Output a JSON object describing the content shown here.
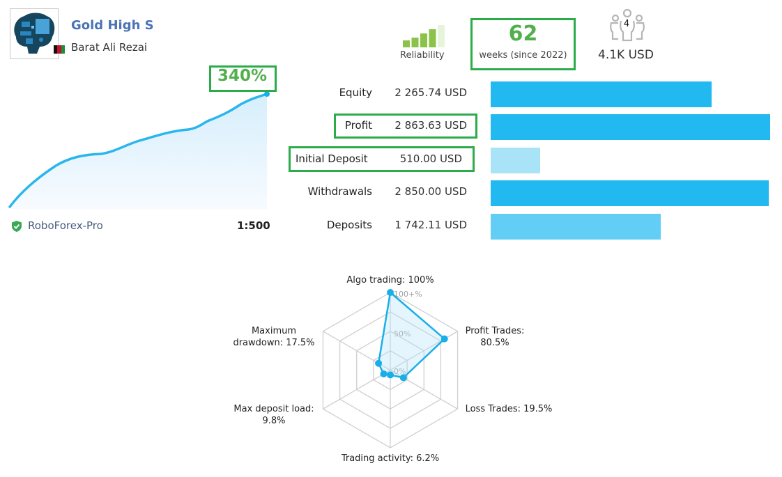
{
  "signal": {
    "title": "Gold High S",
    "author": "Barat Ali Rezai",
    "avatar_icon": "brain-circuit-icon",
    "flag_icon": "afghanistan-flag-icon"
  },
  "reliability": {
    "label": "Reliability",
    "level": 4,
    "max_level": 5,
    "active_color": "#8bc34a",
    "inactive_color": "#e8f3dc"
  },
  "weeks": {
    "value": "62",
    "label": "weeks (since 2022)"
  },
  "subscribers": {
    "icon": "people-icon",
    "count": "4",
    "balance": "4.1K USD"
  },
  "growth": {
    "value": "340%",
    "broker": "RoboForex-Pro",
    "leverage": "1:500",
    "verified_icon": "shield-check-icon",
    "line_color": "#29b6ec"
  },
  "highlight_color": "#2bab4a",
  "stats": [
    {
      "label": "Equity",
      "value": "2 265.74 USD",
      "amount": 2265.74,
      "color": "#21b9f0",
      "highlight": false
    },
    {
      "label": "Profit",
      "value": "2 863.63 USD",
      "amount": 2863.63,
      "color": "#21b9f0",
      "highlight": true
    },
    {
      "label": "Initial Deposit",
      "value": "510.00 USD",
      "amount": 510.0,
      "color": "#a9e3f7",
      "highlight": true
    },
    {
      "label": "Withdrawals",
      "value": "2 850.00 USD",
      "amount": 2850.0,
      "color": "#21b9f0",
      "highlight": false
    },
    {
      "label": "Deposits",
      "value": "1 742.11 USD",
      "amount": 1742.11,
      "color": "#62cdf5",
      "highlight": false
    }
  ],
  "chart_data": {
    "type": "radar",
    "axes": [
      {
        "label": "Algo trading: 100%",
        "value": 100
      },
      {
        "label": "Profit Trades: 80.5%",
        "value": 80.5
      },
      {
        "label": "Loss Trades: 19.5%",
        "value": 19.5
      },
      {
        "label": "Trading activity: 6.2%",
        "value": 6.2
      },
      {
        "label": "Max deposit load: 9.8%",
        "value": 9.8
      },
      {
        "label": "Maximum drawdown: 17.5%",
        "value": 17.5
      }
    ],
    "label_lines": [
      [
        "Algo trading: 100%"
      ],
      [
        "Profit Trades:",
        "80.5%"
      ],
      [
        "Loss Trades: 19.5%"
      ],
      [
        "Trading activity: 6.2%"
      ],
      [
        "Max deposit load:",
        "9.8%"
      ],
      [
        "Maximum",
        "drawdown: 17.5%"
      ]
    ],
    "scale_labels": [
      "100+%",
      "50%",
      "0%"
    ],
    "range": [
      0,
      100
    ],
    "rings": 4,
    "series_color": "#1aaee8"
  }
}
